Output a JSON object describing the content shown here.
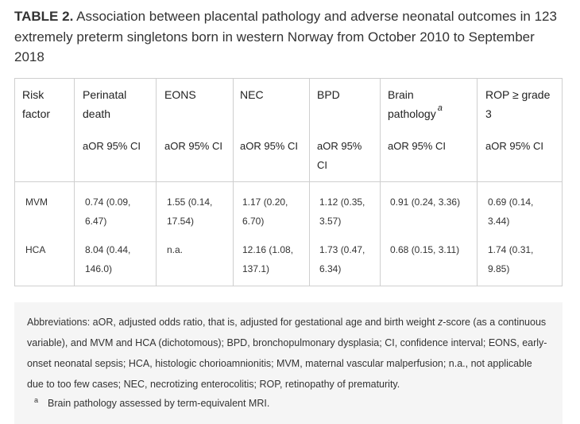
{
  "caption": {
    "label": "TABLE 2.",
    "text": "Association between placental pathology and adverse neonatal outcomes in 123 extremely preterm singletons born in western Norway from October 2010 to September 2018"
  },
  "table": {
    "headers": [
      {
        "line1": "Risk",
        "line2": "factor"
      },
      {
        "line1": "Perinatal",
        "line2": "death"
      },
      {
        "line1": "EONS",
        "line2": ""
      },
      {
        "line1": "NEC",
        "line2": ""
      },
      {
        "line1": "BPD",
        "line2": ""
      },
      {
        "line1": "Brain",
        "line2": "pathology",
        "sup": "a"
      },
      {
        "line1": "ROP ≥ grade",
        "line2": "3"
      }
    ],
    "subheaders": [
      "aOR 95% CI",
      "aOR 95% CI",
      "aOR 95% CI",
      "aOR 95%",
      "CI",
      "aOR 95% CI",
      "aOR 95% CI"
    ],
    "rows": [
      {
        "factor": "MVM",
        "cells": [
          [
            "0.74 (0.09,",
            "6.47)"
          ],
          [
            "1.55 (0.14,",
            "17.54)"
          ],
          [
            "1.17 (0.20,",
            "6.70)"
          ],
          [
            "1.12 (0.35,",
            "3.57)"
          ],
          [
            "0.91 (0.24, 3.36)",
            ""
          ],
          [
            "0.69 (0.14,",
            "3.44)"
          ]
        ]
      },
      {
        "factor": "HCA",
        "cells": [
          [
            "8.04 (0.44,",
            "146.0)"
          ],
          [
            "n.a.",
            ""
          ],
          [
            "12.16 (1.08,",
            "137.1)"
          ],
          [
            "1.73 (0.47,",
            "6.34)"
          ],
          [
            "0.68 (0.15, 3.11)",
            ""
          ],
          [
            "1.74 (0.31,",
            "9.85)"
          ]
        ]
      }
    ]
  },
  "footer": {
    "abbr_before_italic": "Abbreviations: aOR, adjusted odds ratio, that is, adjusted for gestational age and birth weight ",
    "abbr_italic": "z",
    "abbr_after_italic": "-score (as a continuous variable), and MVM and HCA (dichotomous); BPD, bronchopulmonary dysplasia; CI, confidence interval; EONS, early-onset neonatal sepsis; HCA, histologic chorioamnionitis; MVM, maternal vascular malperfusion; n.a., not applicable due to too few cases; NEC, necrotizing enterocolitis; ROP, retinopathy of prematurity.",
    "footnote_mark": "a",
    "footnote_text": "Brain pathology assessed by term-equivalent MRI."
  }
}
